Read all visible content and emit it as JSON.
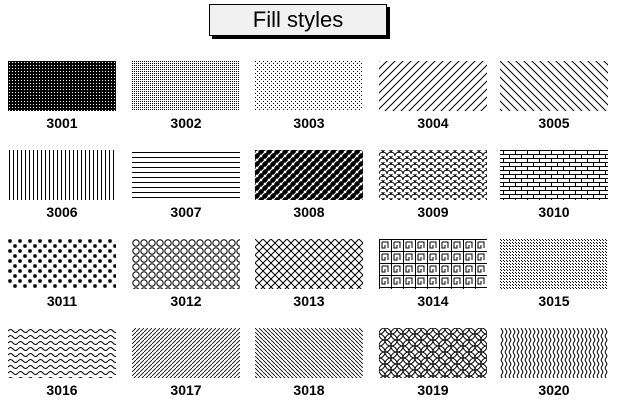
{
  "title": "Fill styles",
  "swatches": [
    {
      "code": "3001",
      "pattern": "dense-dots-dark"
    },
    {
      "code": "3002",
      "pattern": "dots-medium"
    },
    {
      "code": "3003",
      "pattern": "dots-sparse"
    },
    {
      "code": "3004",
      "pattern": "diagonal-up-lines"
    },
    {
      "code": "3005",
      "pattern": "diagonal-down-lines"
    },
    {
      "code": "3006",
      "pattern": "vertical-lines"
    },
    {
      "code": "3007",
      "pattern": "horizontal-lines"
    },
    {
      "code": "3008",
      "pattern": "woven-basket"
    },
    {
      "code": "3009",
      "pattern": "fish-scales"
    },
    {
      "code": "3010",
      "pattern": "bricks"
    },
    {
      "code": "3011",
      "pattern": "stars"
    },
    {
      "code": "3012",
      "pattern": "circles"
    },
    {
      "code": "3013",
      "pattern": "diamond-crosshatch"
    },
    {
      "code": "3014",
      "pattern": "greek-key"
    },
    {
      "code": "3015",
      "pattern": "fine-dot-grid"
    },
    {
      "code": "3016",
      "pattern": "waves"
    },
    {
      "code": "3017",
      "pattern": "fine-diagonal-up"
    },
    {
      "code": "3018",
      "pattern": "fine-diagonal-down"
    },
    {
      "code": "3019",
      "pattern": "overlapping-circles"
    },
    {
      "code": "3020",
      "pattern": "vertical-zigzag"
    }
  ]
}
